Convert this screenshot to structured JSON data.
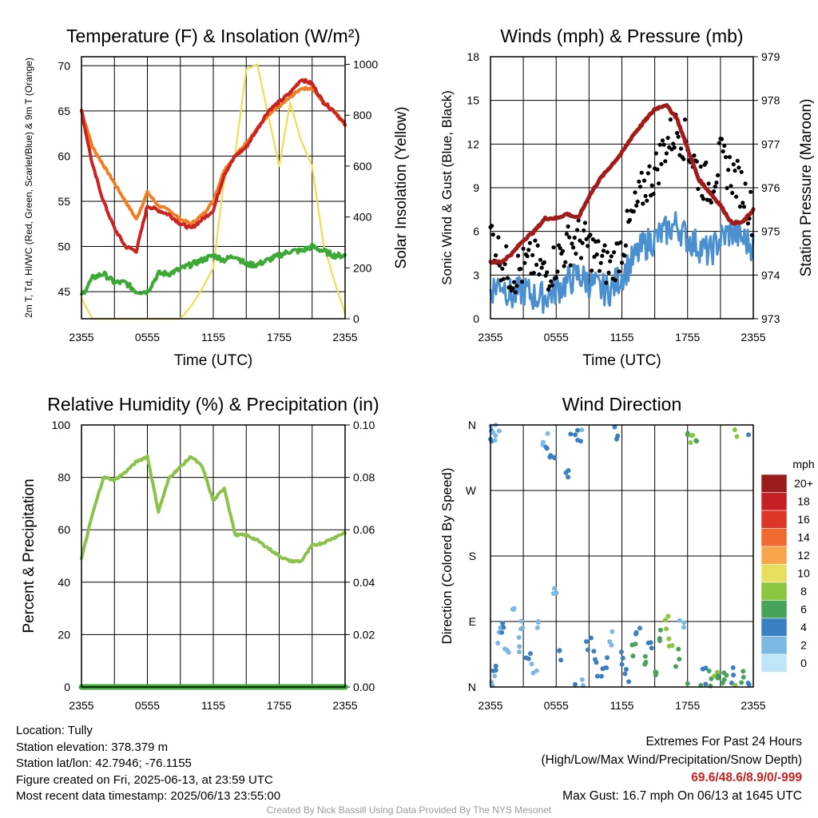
{
  "chart_data": [
    {
      "type": "line",
      "title": "Temperature (F) & Insolation (W/m²)",
      "xlabel": "Time (UTC)",
      "ylabel": "2m T, Td, HI/WC (Red, Green, Scarlet/Blue) & 9m T (Orange)",
      "y2label": "Solar Insolation (Yellow)",
      "x_ticks": [
        "2355",
        "0555",
        "1155",
        "1755",
        "2355"
      ],
      "ylim": [
        42,
        71
      ],
      "y_ticks": [
        45,
        50,
        55,
        60,
        65,
        70
      ],
      "y2lim": [
        0,
        1030
      ],
      "y2_ticks": [
        0,
        200,
        400,
        600,
        800,
        1000
      ],
      "grid": true,
      "x_hours": [
        0,
        1,
        2,
        3,
        4,
        5,
        6,
        7,
        8,
        9,
        10,
        11,
        12,
        13,
        14,
        15,
        16,
        17,
        18,
        19,
        20,
        21,
        22,
        23,
        24
      ],
      "series": [
        {
          "name": "2m T",
          "color": "#cc2222",
          "values": [
            65,
            59,
            55,
            52,
            50,
            49.5,
            54.5,
            54,
            53.5,
            52.5,
            52,
            53,
            54,
            58,
            60,
            61,
            63,
            65,
            66,
            67,
            68.5,
            68,
            66,
            65,
            63.5
          ]
        },
        {
          "name": "9m T",
          "color": "#f07f22",
          "values": [
            65,
            61,
            59,
            57,
            55,
            53,
            56,
            54.5,
            54,
            53,
            52.5,
            53.5,
            55,
            58.5,
            60,
            61.5,
            63,
            64.5,
            65.5,
            66.5,
            67.5,
            67.5,
            66,
            65,
            63.5
          ]
        },
        {
          "name": "Td",
          "color": "#3aaa35",
          "values": [
            44.5,
            46.5,
            47,
            46,
            46,
            45,
            45,
            47,
            47,
            47.5,
            48,
            48.5,
            49,
            48.5,
            49,
            48,
            48,
            48.5,
            49,
            49.5,
            49.5,
            50,
            49.5,
            49,
            49
          ]
        },
        {
          "name": "Solar Insolation",
          "color": "#f2dc55",
          "axis": "right",
          "values": [
            80,
            0,
            0,
            0,
            0,
            0,
            0,
            0,
            0,
            0,
            50,
            120,
            200,
            550,
            650,
            980,
            1000,
            800,
            600,
            850,
            700,
            600,
            300,
            150,
            20
          ]
        }
      ]
    },
    {
      "type": "scatter",
      "title": "Winds (mph) & Pressure (mb)",
      "xlabel": "Time (UTC)",
      "ylabel": "Sonic Wind & Gust (Blue, Black)",
      "y2label": "Station Pressure (Maroon)",
      "x_ticks": [
        "2355",
        "0555",
        "1155",
        "1755",
        "2355"
      ],
      "ylim": [
        0,
        18
      ],
      "y_ticks": [
        0,
        3,
        6,
        9,
        12,
        15,
        18
      ],
      "y2lim": [
        973,
        979
      ],
      "y2_ticks": [
        973,
        974,
        975,
        976,
        977,
        978,
        979
      ],
      "grid": true,
      "x_hours": [
        0,
        1,
        2,
        3,
        4,
        5,
        6,
        7,
        8,
        9,
        10,
        11,
        12,
        13,
        14,
        15,
        16,
        17,
        18,
        19,
        20,
        21,
        22,
        23,
        24
      ],
      "series": [
        {
          "name": "Sonic Wind",
          "color": "#4a90d0",
          "values": [
            2,
            2.5,
            1.5,
            2,
            1.5,
            1.5,
            2,
            2.5,
            3,
            2.5,
            2,
            2,
            3,
            4,
            5,
            5.5,
            6,
            6.5,
            5.5,
            5,
            4.5,
            5.5,
            6,
            5.5,
            5
          ]
        },
        {
          "name": "Gust",
          "color": "#000000",
          "values": [
            6,
            4,
            3,
            3.5,
            4,
            3,
            4,
            5,
            5.5,
            5,
            4,
            3.5,
            5,
            7,
            9,
            10,
            12,
            13,
            12,
            10,
            9,
            11,
            10,
            9,
            7
          ]
        },
        {
          "name": "Station Pressure",
          "color": "#a31a1a",
          "axis": "right",
          "values": [
            974.3,
            974.3,
            974.5,
            974.8,
            975.0,
            975.3,
            975.3,
            975.4,
            975.3,
            975.8,
            976.2,
            976.5,
            976.8,
            977.2,
            977.5,
            977.8,
            977.9,
            977.6,
            976.9,
            976.2,
            975.9,
            975.6,
            975.2,
            975.2,
            975.5
          ]
        }
      ]
    },
    {
      "type": "line",
      "title": "Relative Humidity (%) & Precipitation (in)",
      "ylabel": "Percent & Precipitation",
      "x_ticks": [
        "2355",
        "0555",
        "1155",
        "1755",
        "2355"
      ],
      "ylim": [
        0,
        100
      ],
      "y_ticks": [
        0,
        20,
        40,
        60,
        80,
        100
      ],
      "y2lim": [
        0,
        0.1
      ],
      "y2_ticks": [
        "0.00",
        "0.02",
        "0.04",
        "0.06",
        "0.08",
        "0.10"
      ],
      "grid": true,
      "x_hours": [
        0,
        1,
        2,
        3,
        4,
        5,
        6,
        7,
        8,
        9,
        10,
        11,
        12,
        13,
        14,
        15,
        16,
        17,
        18,
        19,
        20,
        21,
        22,
        23,
        24
      ],
      "series": [
        {
          "name": "Relative Humidity",
          "color": "#8bc34a",
          "values": [
            49,
            66,
            80,
            79,
            82,
            86,
            88,
            67,
            80,
            84,
            88,
            84,
            71,
            76,
            58,
            58,
            56,
            53,
            50,
            48,
            48,
            54,
            55,
            57,
            59
          ]
        },
        {
          "name": "Precipitation",
          "color": "#3aaa35",
          "axis": "right",
          "values": [
            0,
            0,
            0,
            0,
            0,
            0,
            0,
            0,
            0,
            0,
            0,
            0,
            0,
            0,
            0,
            0,
            0,
            0,
            0,
            0,
            0,
            0,
            0,
            0,
            0
          ]
        }
      ]
    },
    {
      "type": "scatter",
      "title": "Wind Direction",
      "ylabel": "Direction (Colored By Speed)",
      "x_ticks": [
        "2355",
        "0555",
        "1155",
        "1755",
        "2355"
      ],
      "y_ticks": [
        "N",
        "E",
        "S",
        "W",
        "N"
      ],
      "ylim": [
        0,
        360
      ],
      "grid": true,
      "colorbar": {
        "title": "mph",
        "labels": [
          "20+",
          "18",
          "16",
          "14",
          "12",
          "10",
          "8",
          "6",
          "4",
          "2",
          "0"
        ],
        "colors": [
          "#9b1c1c",
          "#c62027",
          "#e0362a",
          "#ef6a2d",
          "#f6a54a",
          "#e6de5e",
          "#8cc63f",
          "#45a35a",
          "#3a7fc1",
          "#7db8e3",
          "#bfe6f7"
        ]
      },
      "points": [
        {
          "x": 0.0,
          "dir": 340,
          "speed": 4
        },
        {
          "x": 0.3,
          "dir": 355,
          "speed": 2
        },
        {
          "x": 0.6,
          "dir": 350,
          "speed": 1
        },
        {
          "x": 0.2,
          "dir": 10,
          "speed": 2
        },
        {
          "x": 0.5,
          "dir": 30,
          "speed": 3
        },
        {
          "x": 0.9,
          "dir": 70,
          "speed": 2
        },
        {
          "x": 1.2,
          "dir": 80,
          "speed": 3
        },
        {
          "x": 1.5,
          "dir": 50,
          "speed": 1
        },
        {
          "x": 2.0,
          "dir": 100,
          "speed": 1
        },
        {
          "x": 2.5,
          "dir": 60,
          "speed": 2
        },
        {
          "x": 3.0,
          "dir": 80,
          "speed": 2
        },
        {
          "x": 3.5,
          "dir": 40,
          "speed": 3
        },
        {
          "x": 4.0,
          "dir": 25,
          "speed": 2
        },
        {
          "x": 4.5,
          "dir": 90,
          "speed": 1
        },
        {
          "x": 5.0,
          "dir": 345,
          "speed": 2
        },
        {
          "x": 5.3,
          "dir": 325,
          "speed": 4
        },
        {
          "x": 5.6,
          "dir": 320,
          "speed": 3
        },
        {
          "x": 6.0,
          "dir": 130,
          "speed": 1
        },
        {
          "x": 6.5,
          "dir": 40,
          "speed": 3
        },
        {
          "x": 7.0,
          "dir": 300,
          "speed": 3
        },
        {
          "x": 7.5,
          "dir": 355,
          "speed": 4
        },
        {
          "x": 8.0,
          "dir": 350,
          "speed": 4
        },
        {
          "x": 8.5,
          "dir": 5,
          "speed": 2
        },
        {
          "x": 9.0,
          "dir": 60,
          "speed": 3
        },
        {
          "x": 9.5,
          "dir": 45,
          "speed": 3
        },
        {
          "x": 10.0,
          "dir": 20,
          "speed": 4
        },
        {
          "x": 10.5,
          "dir": 30,
          "speed": 4
        },
        {
          "x": 11.0,
          "dir": 70,
          "speed": 2
        },
        {
          "x": 11.5,
          "dir": 350,
          "speed": 3
        },
        {
          "x": 12.0,
          "dir": 40,
          "speed": 4
        },
        {
          "x": 12.5,
          "dir": 15,
          "speed": 3
        },
        {
          "x": 13.0,
          "dir": 50,
          "speed": 6
        },
        {
          "x": 13.5,
          "dir": 80,
          "speed": 4
        },
        {
          "x": 14.0,
          "dir": 30,
          "speed": 5
        },
        {
          "x": 14.5,
          "dir": 60,
          "speed": 3
        },
        {
          "x": 15.0,
          "dir": 20,
          "speed": 6
        },
        {
          "x": 15.5,
          "dir": 70,
          "speed": 6
        },
        {
          "x": 16.0,
          "dir": 90,
          "speed": 8
        },
        {
          "x": 16.5,
          "dir": 60,
          "speed": 7
        },
        {
          "x": 17.0,
          "dir": 40,
          "speed": 5
        },
        {
          "x": 17.5,
          "dir": 80,
          "speed": 2
        },
        {
          "x": 18.0,
          "dir": 355,
          "speed": 6
        },
        {
          "x": 18.5,
          "dir": 345,
          "speed": 8
        },
        {
          "x": 19.0,
          "dir": 350,
          "speed": 5
        },
        {
          "x": 19.5,
          "dir": 15,
          "speed": 4
        },
        {
          "x": 20.0,
          "dir": 10,
          "speed": 6
        },
        {
          "x": 20.5,
          "dir": 25,
          "speed": 7
        },
        {
          "x": 21.0,
          "dir": 5,
          "speed": 6
        },
        {
          "x": 21.5,
          "dir": 20,
          "speed": 5
        },
        {
          "x": 22.0,
          "dir": 15,
          "speed": 4
        },
        {
          "x": 22.5,
          "dir": 355,
          "speed": 7
        },
        {
          "x": 23.0,
          "dir": 10,
          "speed": 6
        },
        {
          "x": 23.5,
          "dir": 358,
          "speed": 4
        }
      ]
    }
  ],
  "station": {
    "location": "Location: Tully",
    "elevation": "Station elevation: 378.379 m",
    "latlon": "Station lat/lon: 42.7946; -76.1155",
    "created": "Figure created on Fri, 2025-06-13, at 23:59 UTC",
    "recent": "Most recent data timestamp: 2025/06/13 23:55:00"
  },
  "extremes": {
    "title": "Extremes For Past 24 Hours",
    "subtitle": "(High/Low/Max Wind/Precipitation/Snow Depth)",
    "values": "69.6/48.6/8.9/0/-999",
    "max_gust": "Max Gust: 16.7 mph On 06/13 at 1645 UTC"
  },
  "credit": "Created By Nick Bassill Using Data Provided By The NYS Mesonet"
}
